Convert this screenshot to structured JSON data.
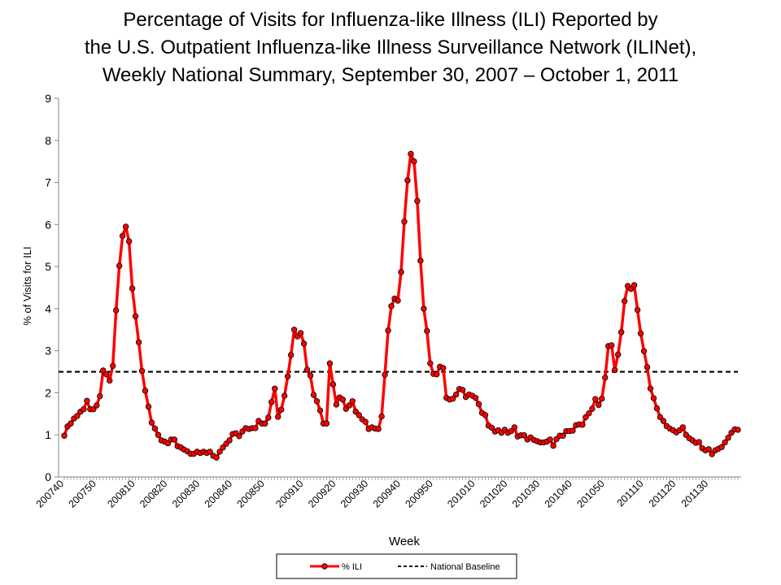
{
  "chart_data": {
    "type": "line",
    "title": [
      "Percentage of Visits for Influenza-like Illness (ILI) Reported by",
      "the U.S. Outpatient Influenza-like Illness Surveillance Network (ILINet),",
      "Weekly National Summary, September 30, 2007 – October 1, 2011"
    ],
    "xlabel": "Week",
    "ylabel": "% of Visits for ILI",
    "ylim": [
      0,
      9
    ],
    "yticks": [
      "0",
      "1",
      "2",
      "3",
      "4",
      "5",
      "6",
      "7",
      "8",
      "9"
    ],
    "x_first_week": "200740",
    "x_last_week": "201139",
    "xtick_labels": [
      "200740",
      "200750",
      "200810",
      "200820",
      "200830",
      "200840",
      "200850",
      "200910",
      "200920",
      "200930",
      "200940",
      "200950",
      "201010",
      "201020",
      "201030",
      "201040",
      "201050",
      "201110",
      "201120",
      "201130"
    ],
    "xtick_week_index": [
      0,
      10,
      22,
      32,
      42,
      52,
      62,
      74,
      84,
      94,
      104,
      114,
      127,
      137,
      147,
      157,
      167,
      179,
      189,
      199
    ],
    "grid": false,
    "legend_position": "bottom",
    "series": [
      {
        "name": "% ILI",
        "color": "#ff0000",
        "marker": "circle",
        "values": [
          0.98,
          1.2,
          1.27,
          1.39,
          1.45,
          1.55,
          1.61,
          1.81,
          1.61,
          1.61,
          1.7,
          1.92,
          2.53,
          2.44,
          2.29,
          2.64,
          3.96,
          5.02,
          5.73,
          5.95,
          5.6,
          4.48,
          3.82,
          3.2,
          2.52,
          2.05,
          1.67,
          1.29,
          1.15,
          1.0,
          0.87,
          0.84,
          0.8,
          0.89,
          0.89,
          0.73,
          0.7,
          0.65,
          0.61,
          0.55,
          0.55,
          0.6,
          0.57,
          0.6,
          0.57,
          0.6,
          0.5,
          0.46,
          0.6,
          0.7,
          0.79,
          0.87,
          1.02,
          1.04,
          0.97,
          1.08,
          1.16,
          1.14,
          1.16,
          1.16,
          1.33,
          1.27,
          1.27,
          1.41,
          1.78,
          2.1,
          1.43,
          1.6,
          1.93,
          2.39,
          2.9,
          3.5,
          3.34,
          3.42,
          3.17,
          2.55,
          2.41,
          1.95,
          1.8,
          1.58,
          1.27,
          1.27,
          2.7,
          2.2,
          1.72,
          1.89,
          1.84,
          1.62,
          1.7,
          1.8,
          1.55,
          1.47,
          1.37,
          1.31,
          1.14,
          1.18,
          1.15,
          1.14,
          1.44,
          2.43,
          3.48,
          4.06,
          4.24,
          4.19,
          4.87,
          6.07,
          7.05,
          7.68,
          7.5,
          6.56,
          5.14,
          4.0,
          3.47,
          2.7,
          2.45,
          2.44,
          2.62,
          2.59,
          1.88,
          1.84,
          1.86,
          1.96,
          2.09,
          2.07,
          1.9,
          1.96,
          1.93,
          1.88,
          1.73,
          1.52,
          1.47,
          1.22,
          1.17,
          1.08,
          1.11,
          1.05,
          1.12,
          1.05,
          1.09,
          1.18,
          0.96,
          0.99,
          0.99,
          0.89,
          0.94,
          0.88,
          0.85,
          0.82,
          0.82,
          0.84,
          0.89,
          0.74,
          0.9,
          0.98,
          0.98,
          1.09,
          1.09,
          1.1,
          1.23,
          1.25,
          1.24,
          1.42,
          1.51,
          1.62,
          1.85,
          1.71,
          1.86,
          2.36,
          3.11,
          3.13,
          2.54,
          2.91,
          3.44,
          4.18,
          4.54,
          4.47,
          4.56,
          3.97,
          3.41,
          2.99,
          2.61,
          2.1,
          1.87,
          1.63,
          1.42,
          1.33,
          1.21,
          1.15,
          1.11,
          1.06,
          1.11,
          1.18,
          1.0,
          0.92,
          0.87,
          0.81,
          0.83,
          0.68,
          0.63,
          0.66,
          0.54,
          0.63,
          0.67,
          0.71,
          0.82,
          0.93,
          1.05,
          1.13,
          1.12
        ]
      },
      {
        "name": "National Baseline",
        "color": "#000000",
        "style": "dashed",
        "constant": 2.5
      }
    ]
  }
}
